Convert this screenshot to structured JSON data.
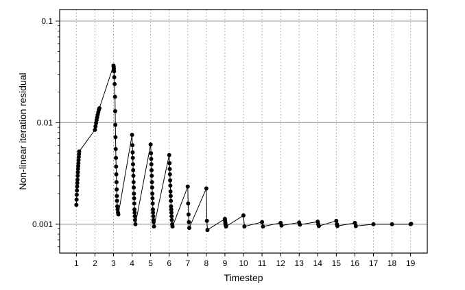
{
  "chart_data": {
    "type": "scatter",
    "title": "",
    "xlabel": "Timestep",
    "ylabel": "Non-linear iteration residual",
    "yscale": "log",
    "xlim": [
      0.1,
      19.9
    ],
    "ylim": [
      0.00052,
      0.13
    ],
    "xticks": [
      "1",
      "2",
      "3",
      "4",
      "5",
      "6",
      "7",
      "8",
      "9",
      "10",
      "11",
      "12",
      "13",
      "14",
      "15",
      "16",
      "17",
      "18",
      "19"
    ],
    "yticks": [
      {
        "value": 0.1,
        "label": "0.1"
      },
      {
        "value": 0.01,
        "label": "0.01"
      },
      {
        "value": 0.001,
        "label": "0.001"
      }
    ],
    "grid": {
      "major_y": true,
      "x_dotted": true
    },
    "series": [
      {
        "points": [
          [
            1.0,
            0.00155
          ],
          [
            1.01,
            0.00175
          ],
          [
            1.02,
            0.00195
          ],
          [
            1.03,
            0.00215
          ],
          [
            1.04,
            0.00235
          ],
          [
            1.05,
            0.00255
          ],
          [
            1.06,
            0.00275
          ],
          [
            1.07,
            0.003
          ],
          [
            1.08,
            0.00325
          ],
          [
            1.09,
            0.0035
          ],
          [
            1.1,
            0.00375
          ],
          [
            1.11,
            0.004
          ],
          [
            1.12,
            0.0043
          ],
          [
            1.13,
            0.0046
          ],
          [
            1.14,
            0.0049
          ],
          [
            1.15,
            0.0052
          ],
          [
            2.0,
            0.0085
          ],
          [
            2.03,
            0.0092
          ],
          [
            2.06,
            0.0099
          ],
          [
            2.09,
            0.0106
          ],
          [
            2.12,
            0.0113
          ],
          [
            2.15,
            0.012
          ],
          [
            2.18,
            0.0127
          ],
          [
            2.21,
            0.0134
          ],
          [
            2.24,
            0.0139
          ],
          [
            3.0,
            0.0365
          ],
          [
            3.01,
            0.0355
          ],
          [
            3.02,
            0.034
          ],
          [
            3.03,
            0.032
          ],
          [
            3.04,
            0.028
          ],
          [
            3.06,
            0.024
          ],
          [
            3.08,
            0.018
          ],
          [
            3.09,
            0.013
          ],
          [
            3.1,
            0.0095
          ],
          [
            3.11,
            0.0072
          ],
          [
            3.12,
            0.0055
          ],
          [
            3.13,
            0.0045
          ],
          [
            3.14,
            0.0037
          ],
          [
            3.15,
            0.0031
          ],
          [
            3.16,
            0.0026
          ],
          [
            3.17,
            0.0022
          ],
          [
            3.18,
            0.0019
          ],
          [
            3.19,
            0.0017
          ],
          [
            3.2,
            0.0015
          ],
          [
            3.22,
            0.0014
          ],
          [
            3.24,
            0.0013
          ],
          [
            3.26,
            0.00125
          ],
          [
            4.0,
            0.0076
          ],
          [
            4.02,
            0.006
          ],
          [
            4.03,
            0.0051
          ],
          [
            4.04,
            0.0045
          ],
          [
            4.05,
            0.0039
          ],
          [
            4.06,
            0.0034
          ],
          [
            4.07,
            0.003
          ],
          [
            4.08,
            0.0026
          ],
          [
            4.09,
            0.0023
          ],
          [
            4.1,
            0.002
          ],
          [
            4.11,
            0.0018
          ],
          [
            4.12,
            0.0016
          ],
          [
            4.13,
            0.0014
          ],
          [
            4.14,
            0.0013
          ],
          [
            4.15,
            0.0012
          ],
          [
            4.16,
            0.0011
          ],
          [
            4.18,
            0.001
          ],
          [
            5.0,
            0.0061
          ],
          [
            5.02,
            0.005
          ],
          [
            5.03,
            0.0044
          ],
          [
            5.04,
            0.0039
          ],
          [
            5.05,
            0.0034
          ],
          [
            5.06,
            0.003
          ],
          [
            5.07,
            0.0026
          ],
          [
            5.08,
            0.0023
          ],
          [
            5.09,
            0.002
          ],
          [
            5.1,
            0.0018
          ],
          [
            5.11,
            0.0016
          ],
          [
            5.12,
            0.0014
          ],
          [
            5.13,
            0.0013
          ],
          [
            5.14,
            0.0012
          ],
          [
            5.15,
            0.0011
          ],
          [
            5.16,
            0.00105
          ],
          [
            5.18,
            0.00095
          ],
          [
            6.0,
            0.0048
          ],
          [
            6.02,
            0.004
          ],
          [
            6.03,
            0.0035
          ],
          [
            6.04,
            0.0031
          ],
          [
            6.05,
            0.0027
          ],
          [
            6.06,
            0.0024
          ],
          [
            6.07,
            0.0021
          ],
          [
            6.08,
            0.0019
          ],
          [
            6.09,
            0.0017
          ],
          [
            6.1,
            0.0015
          ],
          [
            6.11,
            0.0014
          ],
          [
            6.12,
            0.0013
          ],
          [
            6.13,
            0.0012
          ],
          [
            6.14,
            0.0011
          ],
          [
            6.16,
            0.001
          ],
          [
            6.18,
            0.00095
          ],
          [
            7.0,
            0.00235
          ],
          [
            7.02,
            0.0016
          ],
          [
            7.04,
            0.00125
          ],
          [
            7.06,
            0.00105
          ],
          [
            7.08,
            0.00092
          ],
          [
            8.0,
            0.00225
          ],
          [
            8.03,
            0.00108
          ],
          [
            8.06,
            0.00088
          ],
          [
            9.0,
            0.00113
          ],
          [
            9.01,
            0.00108
          ],
          [
            9.02,
            0.00104
          ],
          [
            9.03,
            0.00101
          ],
          [
            9.04,
            0.00098
          ],
          [
            9.06,
            0.00095
          ],
          [
            10.0,
            0.00122
          ],
          [
            10.05,
            0.00095
          ],
          [
            11.0,
            0.00105
          ],
          [
            11.05,
            0.00095
          ],
          [
            12.0,
            0.00103
          ],
          [
            12.05,
            0.00097
          ],
          [
            13.0,
            0.00104
          ],
          [
            13.04,
            0.00099
          ],
          [
            14.0,
            0.00106
          ],
          [
            14.03,
            0.001
          ],
          [
            14.06,
            0.00096
          ],
          [
            15.0,
            0.00108
          ],
          [
            15.03,
            0.001
          ],
          [
            15.06,
            0.00096
          ],
          [
            16.0,
            0.00103
          ],
          [
            16.05,
            0.00096
          ],
          [
            17.0,
            0.001
          ],
          [
            18.0,
            0.001
          ],
          [
            19.0,
            0.001
          ],
          [
            19.03,
            0.00101
          ]
        ]
      }
    ]
  }
}
